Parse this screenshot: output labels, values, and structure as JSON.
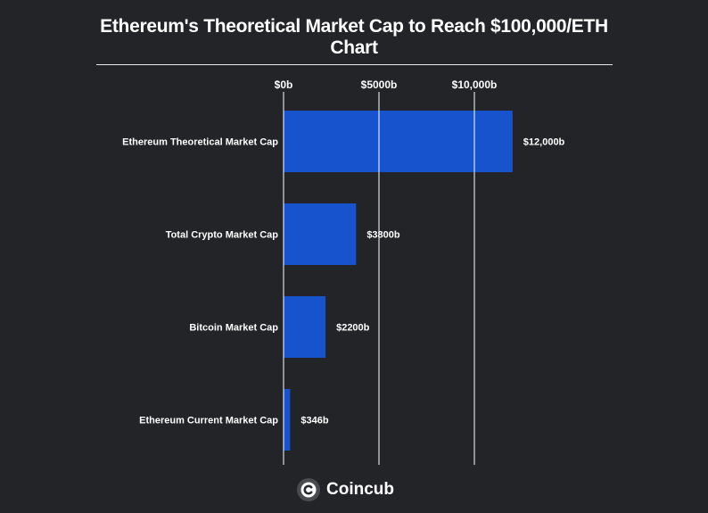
{
  "brand": {
    "name": "Coincub",
    "logo_icon": "coincub-c-logo-icon"
  },
  "colors": {
    "background": "#232428",
    "bar": "#1753cc",
    "text": "#ffffff",
    "grid": "#ffffff"
  },
  "chart_data": {
    "type": "bar",
    "orientation": "horizontal",
    "title": "Ethereum's Theoretical Market Cap to Reach $100,000/ETH Chart",
    "categories": [
      "Ethereum Theoretical Market Cap",
      "Total Crypto Market Cap",
      "Bitcoin Market Cap",
      "Ethereum Current Market Cap"
    ],
    "values": [
      12000,
      3800,
      2200,
      346
    ],
    "value_labels": [
      "$12,000b",
      "$3800b",
      "$2200b",
      "$346b"
    ],
    "x_ticks": [
      0,
      5000,
      10000
    ],
    "x_tick_labels": [
      "$0b",
      "$5000b",
      "$10,000b"
    ],
    "xlim": [
      0,
      15000
    ],
    "x_axis_position": "top",
    "grid": true,
    "legend": "none",
    "xlabel": "",
    "ylabel": ""
  }
}
